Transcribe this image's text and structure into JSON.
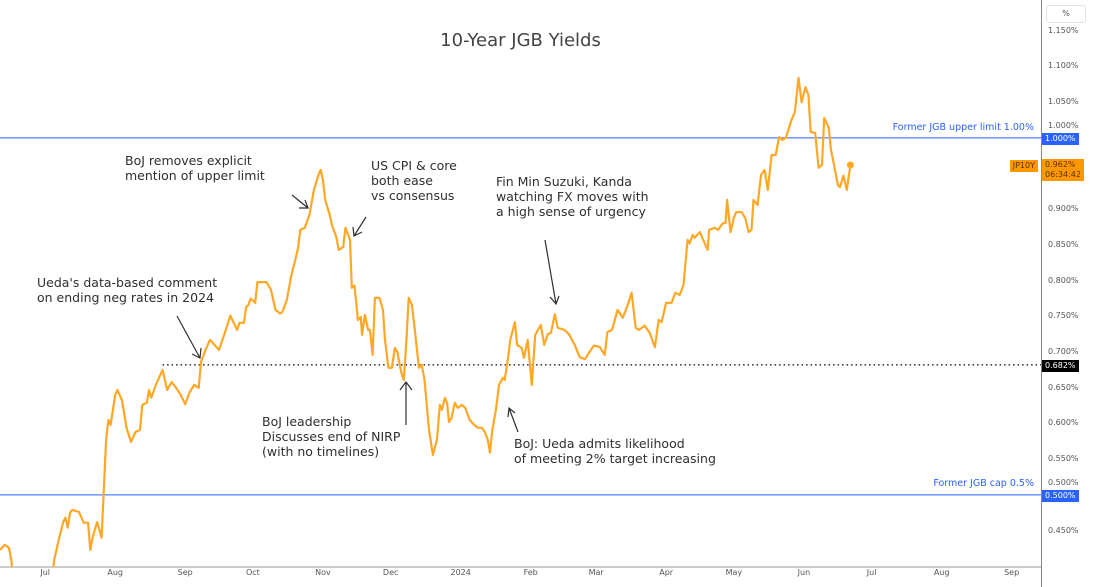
{
  "chart_data": {
    "type": "line",
    "title": "10-Year JGB Yields",
    "symbol": "JP10Y",
    "xlabel": "",
    "ylabel": "%",
    "x_unit": "days since 2023-07-01",
    "xlim": [
      -20,
      441
    ],
    "ylim": [
      0.399,
      1.193
    ],
    "y_ticks": [
      "1.150%",
      "1.100%",
      "1.050%",
      "1.000%",
      "0.900%",
      "0.850%",
      "0.800%",
      "0.750%",
      "0.700%",
      "0.650%",
      "0.600%",
      "0.550%",
      "0.500%",
      "0.450%"
    ],
    "y_tick_values": [
      1.15,
      1.1,
      1.05,
      1.0,
      0.9,
      0.85,
      0.8,
      0.75,
      0.7,
      0.65,
      0.6,
      0.55,
      0.5,
      0.45
    ],
    "x_ticks": [
      {
        "label": "Jul",
        "day": 0
      },
      {
        "label": "Aug",
        "day": 31
      },
      {
        "label": "Sep",
        "day": 62
      },
      {
        "label": "Oct",
        "day": 92
      },
      {
        "label": "Nov",
        "day": 123
      },
      {
        "label": "Dec",
        "day": 153
      },
      {
        "label": "2024",
        "day": 184
      },
      {
        "label": "Feb",
        "day": 215
      },
      {
        "label": "Mar",
        "day": 244
      },
      {
        "label": "Apr",
        "day": 275
      },
      {
        "label": "May",
        "day": 305
      },
      {
        "label": "Jun",
        "day": 336
      },
      {
        "label": "Jul",
        "day": 366
      },
      {
        "label": "Aug",
        "day": 397
      },
      {
        "label": "Sep",
        "day": 428
      }
    ],
    "series": [
      {
        "name": "JP10Y",
        "color": "#ffa726",
        "points": [
          [
            -20,
            0.423
          ],
          [
            -18,
            0.43
          ],
          [
            -16,
            0.426
          ],
          [
            -15,
            0.409
          ],
          [
            -14,
            0.38
          ],
          [
            3,
            0.38
          ],
          [
            4,
            0.409
          ],
          [
            6,
            0.437
          ],
          [
            8,
            0.462
          ],
          [
            9,
            0.468
          ],
          [
            10,
            0.454
          ],
          [
            11,
            0.475
          ],
          [
            12,
            0.479
          ],
          [
            13,
            0.478
          ],
          [
            15,
            0.476
          ],
          [
            17,
            0.461
          ],
          [
            19,
            0.461
          ],
          [
            20,
            0.423
          ],
          [
            21,
            0.44
          ],
          [
            23,
            0.462
          ],
          [
            25,
            0.44
          ],
          [
            27,
            0.577
          ],
          [
            28,
            0.605
          ],
          [
            29,
            0.598
          ],
          [
            31,
            0.64
          ],
          [
            32,
            0.647
          ],
          [
            34,
            0.633
          ],
          [
            36,
            0.594
          ],
          [
            38,
            0.574
          ],
          [
            40,
            0.588
          ],
          [
            42,
            0.591
          ],
          [
            43,
            0.626
          ],
          [
            45,
            0.629
          ],
          [
            46,
            0.647
          ],
          [
            47,
            0.636
          ],
          [
            49,
            0.654
          ],
          [
            51,
            0.668
          ],
          [
            52,
            0.675
          ],
          [
            54,
            0.647
          ],
          [
            56,
            0.658
          ],
          [
            58,
            0.65
          ],
          [
            60,
            0.64
          ],
          [
            62,
            0.627
          ],
          [
            64,
            0.644
          ],
          [
            66,
            0.654
          ],
          [
            68,
            0.65
          ],
          [
            69,
            0.686
          ],
          [
            71,
            0.703
          ],
          [
            73,
            0.717
          ],
          [
            77,
            0.703
          ],
          [
            80,
            0.731
          ],
          [
            82,
            0.751
          ],
          [
            85,
            0.731
          ],
          [
            86,
            0.741
          ],
          [
            88,
            0.741
          ],
          [
            89,
            0.763
          ],
          [
            90,
            0.766
          ],
          [
            91,
            0.775
          ],
          [
            93,
            0.769
          ],
          [
            94,
            0.798
          ],
          [
            98,
            0.798
          ],
          [
            100,
            0.787
          ],
          [
            102,
            0.759
          ],
          [
            104,
            0.754
          ],
          [
            105,
            0.756
          ],
          [
            107,
            0.773
          ],
          [
            109,
            0.807
          ],
          [
            111,
            0.832
          ],
          [
            112,
            0.846
          ],
          [
            113,
            0.871
          ],
          [
            115,
            0.874
          ],
          [
            117,
            0.892
          ],
          [
            119,
            0.927
          ],
          [
            121,
            0.948
          ],
          [
            122,
            0.955
          ],
          [
            123,
            0.941
          ],
          [
            124,
            0.913
          ],
          [
            126,
            0.892
          ],
          [
            127,
            0.878
          ],
          [
            129,
            0.86
          ],
          [
            130,
            0.843
          ],
          [
            132,
            0.847
          ],
          [
            133,
            0.874
          ],
          [
            135,
            0.857
          ],
          [
            135.8,
            0.79
          ],
          [
            137,
            0.793
          ],
          [
            138.5,
            0.745
          ],
          [
            139.8,
            0.749
          ],
          [
            140.3,
            0.724
          ],
          [
            141.6,
            0.752
          ],
          [
            143,
            0.731
          ],
          [
            143.8,
            0.731
          ],
          [
            145,
            0.696
          ],
          [
            146,
            0.776
          ],
          [
            148,
            0.776
          ],
          [
            149.6,
            0.759
          ],
          [
            150.4,
            0.72
          ],
          [
            151.3,
            0.696
          ],
          [
            152,
            0.678
          ],
          [
            153.5,
            0.678
          ],
          [
            154.9,
            0.706
          ],
          [
            156,
            0.7
          ],
          [
            157,
            0.682
          ],
          [
            158,
            0.668
          ],
          [
            158.8,
            0.661
          ],
          [
            160,
            0.719
          ],
          [
            161,
            0.776
          ],
          [
            162.4,
            0.766
          ],
          [
            163.7,
            0.731
          ],
          [
            165.5,
            0.678
          ],
          [
            166.8,
            0.682
          ],
          [
            168,
            0.661
          ],
          [
            170,
            0.591
          ],
          [
            171.7,
            0.556
          ],
          [
            173.5,
            0.577
          ],
          [
            174.8,
            0.626
          ],
          [
            175.7,
            0.619
          ],
          [
            177,
            0.636
          ],
          [
            178,
            0.629
          ],
          [
            178.8,
            0.602
          ],
          [
            180,
            0.608
          ],
          [
            181.4,
            0.629
          ],
          [
            182.7,
            0.622
          ],
          [
            184.5,
            0.626
          ],
          [
            186,
            0.622
          ],
          [
            188,
            0.605
          ],
          [
            190,
            0.598
          ],
          [
            191.6,
            0.594
          ],
          [
            193.4,
            0.594
          ],
          [
            194.7,
            0.588
          ],
          [
            196,
            0.577
          ],
          [
            197,
            0.559
          ],
          [
            198,
            0.591
          ],
          [
            199.6,
            0.619
          ],
          [
            201,
            0.654
          ],
          [
            202.7,
            0.664
          ],
          [
            203.5,
            0.661
          ],
          [
            205,
            0.692
          ],
          [
            206,
            0.717
          ],
          [
            208,
            0.742
          ],
          [
            209,
            0.71
          ],
          [
            211,
            0.706
          ],
          [
            212,
            0.692
          ],
          [
            213.7,
            0.717
          ],
          [
            215.5,
            0.654
          ],
          [
            217,
            0.724
          ],
          [
            219.5,
            0.738
          ],
          [
            221,
            0.71
          ],
          [
            222.6,
            0.725
          ],
          [
            224,
            0.727
          ],
          [
            225.7,
            0.753
          ],
          [
            227,
            0.734
          ],
          [
            230,
            0.731
          ],
          [
            232,
            0.725
          ],
          [
            234.5,
            0.71
          ],
          [
            236.7,
            0.693
          ],
          [
            239,
            0.69
          ],
          [
            241,
            0.7
          ],
          [
            243,
            0.709
          ],
          [
            245.6,
            0.707
          ],
          [
            247.8,
            0.696
          ],
          [
            249,
            0.728
          ],
          [
            251,
            0.731
          ],
          [
            253.5,
            0.759
          ],
          [
            255.8,
            0.748
          ],
          [
            258,
            0.766
          ],
          [
            259.7,
            0.783
          ],
          [
            261.5,
            0.734
          ],
          [
            263,
            0.731
          ],
          [
            265.5,
            0.737
          ],
          [
            267.7,
            0.727
          ],
          [
            270,
            0.707
          ],
          [
            271.7,
            0.745
          ],
          [
            273,
            0.742
          ],
          [
            275,
            0.769
          ],
          [
            277.4,
            0.769
          ],
          [
            279,
            0.783
          ],
          [
            281,
            0.78
          ],
          [
            282.7,
            0.794
          ],
          [
            284.5,
            0.857
          ],
          [
            285.4,
            0.852
          ],
          [
            286.7,
            0.864
          ],
          [
            287.6,
            0.86
          ],
          [
            290,
            0.868
          ],
          [
            291,
            0.86
          ],
          [
            293.4,
            0.843
          ],
          [
            294,
            0.871
          ],
          [
            296.5,
            0.874
          ],
          [
            298,
            0.871
          ],
          [
            300,
            0.88
          ],
          [
            301.3,
            0.881
          ],
          [
            302,
            0.913
          ],
          [
            303.5,
            0.868
          ],
          [
            305,
            0.888
          ],
          [
            306,
            0.896
          ],
          [
            308.4,
            0.896
          ],
          [
            310,
            0.888
          ],
          [
            311.5,
            0.868
          ],
          [
            312.8,
            0.871
          ],
          [
            313.7,
            0.913
          ],
          [
            315.5,
            0.906
          ],
          [
            317,
            0.948
          ],
          [
            318.6,
            0.955
          ],
          [
            320,
            0.927
          ],
          [
            321.7,
            0.976
          ],
          [
            323.5,
            0.976
          ],
          [
            325,
            1.001
          ],
          [
            326.5,
            0.997
          ],
          [
            328,
            1.0
          ],
          [
            330.5,
            1.025
          ],
          [
            332,
            1.036
          ],
          [
            333.6,
            1.084
          ],
          [
            335,
            1.05
          ],
          [
            336.7,
            1.071
          ],
          [
            338,
            1.06
          ],
          [
            339,
            1.008
          ],
          [
            341,
            1.007
          ],
          [
            342.5,
            0.958
          ],
          [
            344,
            0.962
          ],
          [
            345,
            1.028
          ],
          [
            347,
            1.014
          ],
          [
            348,
            0.983
          ],
          [
            349.6,
            0.958
          ],
          [
            351,
            0.934
          ],
          [
            352,
            0.931
          ],
          [
            353.5,
            0.947
          ],
          [
            355,
            0.927
          ],
          [
            356.6,
            0.962
          ]
        ]
      }
    ],
    "levels": [
      {
        "value": 1.0,
        "label": "Former JGB upper limit 1.00%",
        "tag": "1.000%",
        "color": "#2962ff"
      },
      {
        "value": 0.5,
        "label": "Former JGB cap 0.5%",
        "tag": "0.500%",
        "color": "#2962ff"
      },
      {
        "value": 0.682,
        "tag": "0.682%",
        "start_day": 52,
        "color": "#000000",
        "style": "dotted"
      }
    ],
    "last": {
      "symbol": "JP10Y",
      "value": "0.962%",
      "countdown": "06:34:42",
      "color": "#ff9800"
    },
    "annotations": [
      {
        "id": "ueda",
        "text": "Ueda's data-based comment\non ending neg rates in 2024"
      },
      {
        "id": "removes",
        "text": "BoJ removes explicit\nmention of upper limit"
      },
      {
        "id": "cpi",
        "text": "US CPI & core\nboth ease\nvs consensus"
      },
      {
        "id": "finmin",
        "text": "Fin Min Suzuki, Kanda\nwatching FX moves with\na high sense of urgency"
      },
      {
        "id": "leadership",
        "text": "BoJ leadership\nDiscusses end of NIRP\n(with no timelines)"
      },
      {
        "id": "target",
        "text": "BoJ: Ueda admits likelihood\nof meeting 2% target increasing"
      }
    ]
  }
}
